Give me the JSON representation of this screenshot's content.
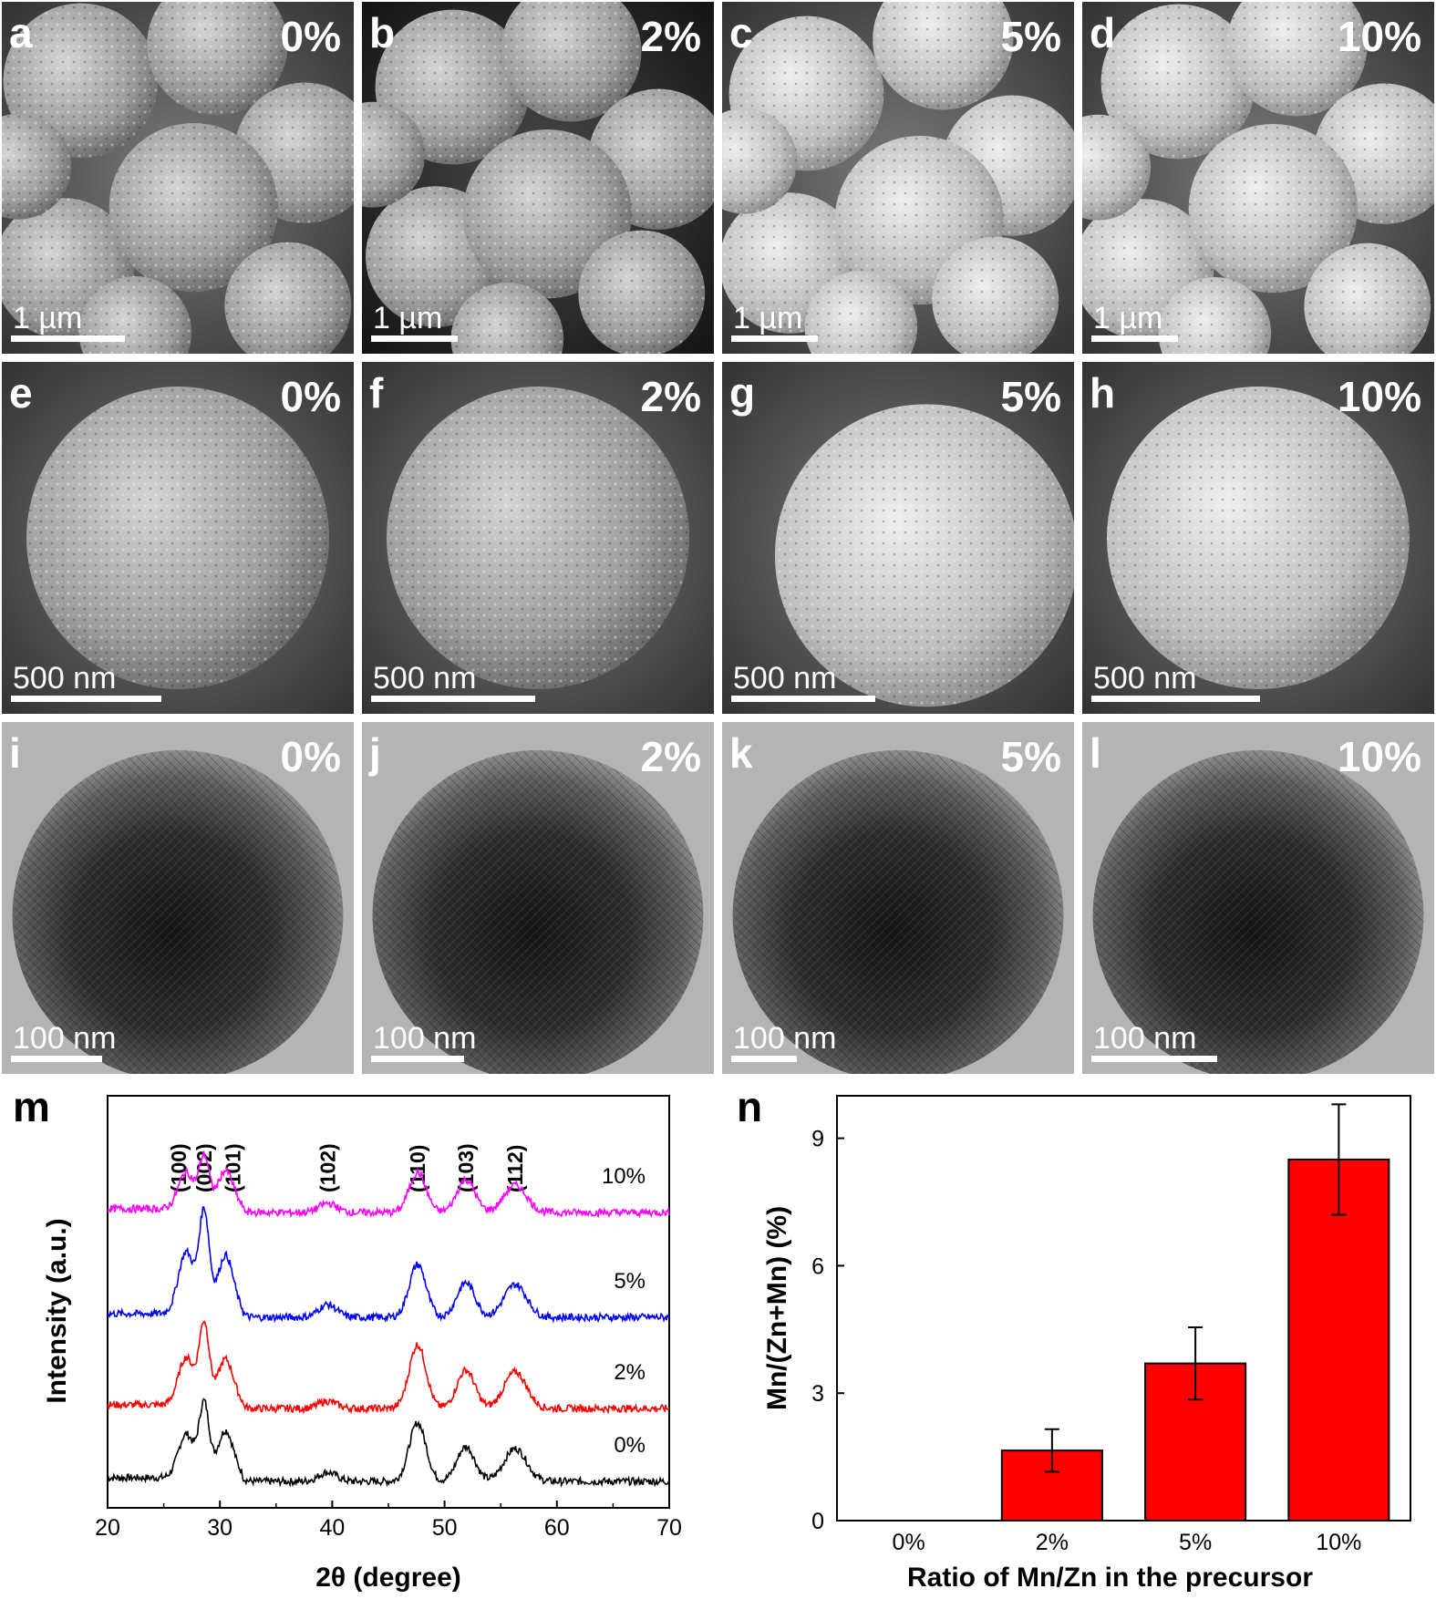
{
  "micrographs": [
    {
      "letter": "a",
      "ratio": "0%",
      "scale": "1 µm"
    },
    {
      "letter": "b",
      "ratio": "2%",
      "scale": "1 µm"
    },
    {
      "letter": "c",
      "ratio": "5%",
      "scale": "1 µm"
    },
    {
      "letter": "d",
      "ratio": "10%",
      "scale": "1 µm"
    },
    {
      "letter": "e",
      "ratio": "0%",
      "scale": "500 nm"
    },
    {
      "letter": "f",
      "ratio": "2%",
      "scale": "500 nm"
    },
    {
      "letter": "g",
      "ratio": "5%",
      "scale": "500 nm"
    },
    {
      "letter": "h",
      "ratio": "10%",
      "scale": "500 nm"
    },
    {
      "letter": "i",
      "ratio": "0%",
      "scale": "100 nm"
    },
    {
      "letter": "j",
      "ratio": "2%",
      "scale": "100 nm"
    },
    {
      "letter": "k",
      "ratio": "5%",
      "scale": "100 nm"
    },
    {
      "letter": "l",
      "ratio": "10%",
      "scale": "100 nm"
    }
  ],
  "chart_data": [
    {
      "letter": "m",
      "type": "line",
      "xlabel": "2θ (degree)",
      "ylabel": "Intensity (a.u.)",
      "xlim": [
        20,
        70
      ],
      "xticks": [
        20,
        30,
        40,
        50,
        60,
        70
      ],
      "grid": false,
      "peaks": [
        {
          "label": "(100)",
          "x": 27.0
        },
        {
          "label": "(002)",
          "x": 28.6
        },
        {
          "label": "(101)",
          "x": 30.5
        },
        {
          "label": "(102)",
          "x": 39.6
        },
        {
          "label": "(110)",
          "x": 47.6
        },
        {
          "label": "(103)",
          "x": 51.9
        },
        {
          "label": "(112)",
          "x": 56.3
        }
      ],
      "series": [
        {
          "name": "0%",
          "color": "#000000"
        },
        {
          "name": "2%",
          "color": "#ff0000"
        },
        {
          "name": "5%",
          "color": "#0000ff"
        },
        {
          "name": "10%",
          "color": "#ff00ff"
        }
      ]
    },
    {
      "letter": "n",
      "type": "bar",
      "xlabel": "Ratio of Mn/Zn in the precursor",
      "ylabel": "Mn/(Zn+Mn) (%)",
      "categories": [
        "0%",
        "2%",
        "5%",
        "10%"
      ],
      "values": [
        0,
        1.65,
        3.7,
        8.5
      ],
      "errors": [
        0,
        0.5,
        0.85,
        1.3
      ],
      "ylim": [
        0,
        10
      ],
      "yticks": [
        0,
        3,
        6,
        9
      ],
      "bar_color": "#ff0000",
      "grid": false
    }
  ]
}
